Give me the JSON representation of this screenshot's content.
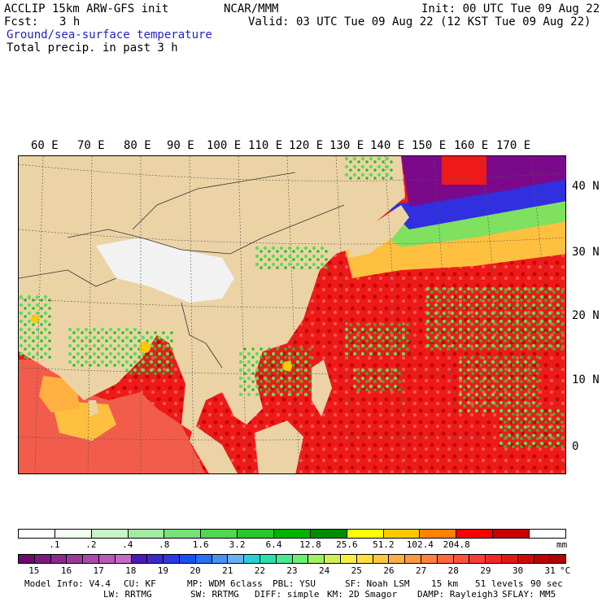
{
  "header": {
    "model": "ACCLIP 15km ARW-GFS init",
    "fcst_label": "Fcst:",
    "fcst_value": "3 h",
    "center": "NCAR/MMM",
    "init": "Init: 00 UTC Tue 09 Aug 22",
    "valid": "Valid: 03 UTC Tue 09 Aug 22 (12 KST Tue 09 Aug 22)",
    "field1": "Ground/sea-surface temperature",
    "field2": "Total precip. in past 3 h",
    "field1_color": "#2222cc"
  },
  "map": {
    "lon_labels": [
      "60 E",
      "70 E",
      "80 E",
      "90 E",
      "100 E",
      "110 E",
      "120 E",
      "130 E",
      "140 E",
      "150 E",
      "160 E",
      "170 E"
    ],
    "lat_labels": [
      "40 N",
      "30 N",
      "20 N",
      "10 N",
      "0"
    ],
    "colors": {
      "land": "#ecd3a6",
      "plateau": "#f2f2f2",
      "warm_sea": "#ee1a1a",
      "hot_sea": "#cc0000",
      "mid_sea": "#f25c4a",
      "cool_sea": "#ffc040",
      "cold_sea": "#3030e0",
      "coldest_sea": "#7a0a8a",
      "rain": "#58e05a"
    }
  },
  "precip_legend": {
    "colors": [
      "#ffffff",
      "#f0fff0",
      "#c8f5c8",
      "#a0eca0",
      "#78e078",
      "#50d850",
      "#28c828",
      "#00b400",
      "#008c00",
      "#ffff00",
      "#ffc800",
      "#ff8200",
      "#ff0000",
      "#c80000",
      "#ffffff"
    ],
    "ticks": [
      ".1",
      ".2",
      ".4",
      ".8",
      "1.6",
      "3.2",
      "6.4",
      "12.8",
      "25.6",
      "51.2",
      "102.4",
      "204.8"
    ],
    "unit": "mm"
  },
  "temp_legend": {
    "colors": [
      "#6a0a6a",
      "#7a1a7a",
      "#8a2a8a",
      "#9a3a9a",
      "#aa4aaa",
      "#b85ab8",
      "#c56ac5",
      "#4a1ab4",
      "#3a2ac8",
      "#2a3ae0",
      "#1a50f0",
      "#2a70f0",
      "#4a90f0",
      "#6ab0f0",
      "#2ad0d0",
      "#2ae0b0",
      "#4ae890",
      "#6af070",
      "#a0f060",
      "#d0f050",
      "#f8f040",
      "#ffe040",
      "#ffc840",
      "#ffb040",
      "#ff9840",
      "#ff8040",
      "#ff6840",
      "#ff5040",
      "#f83c3c",
      "#f02828",
      "#e01818",
      "#d00808",
      "#c00000",
      "#b00000"
    ],
    "ticks": [
      "15",
      "16",
      "17",
      "18",
      "19",
      "20",
      "21",
      "22",
      "23",
      "24",
      "25",
      "26",
      "27",
      "28",
      "29",
      "30",
      "31"
    ],
    "unit": "°C"
  },
  "footer": {
    "line1": [
      "Model Info: V4.4",
      "CU: KF",
      "MP: WDM 6class",
      "PBL: YSU",
      "SF: Noah LSM",
      "15 km",
      "51 levels",
      "90 sec"
    ],
    "line2": [
      "LW: RRTMG",
      "SW: RRTMG",
      "DIFF: simple",
      "KM: 2D Smagor",
      "DAMP: Rayleigh3",
      "SFLAY: MM5"
    ]
  }
}
